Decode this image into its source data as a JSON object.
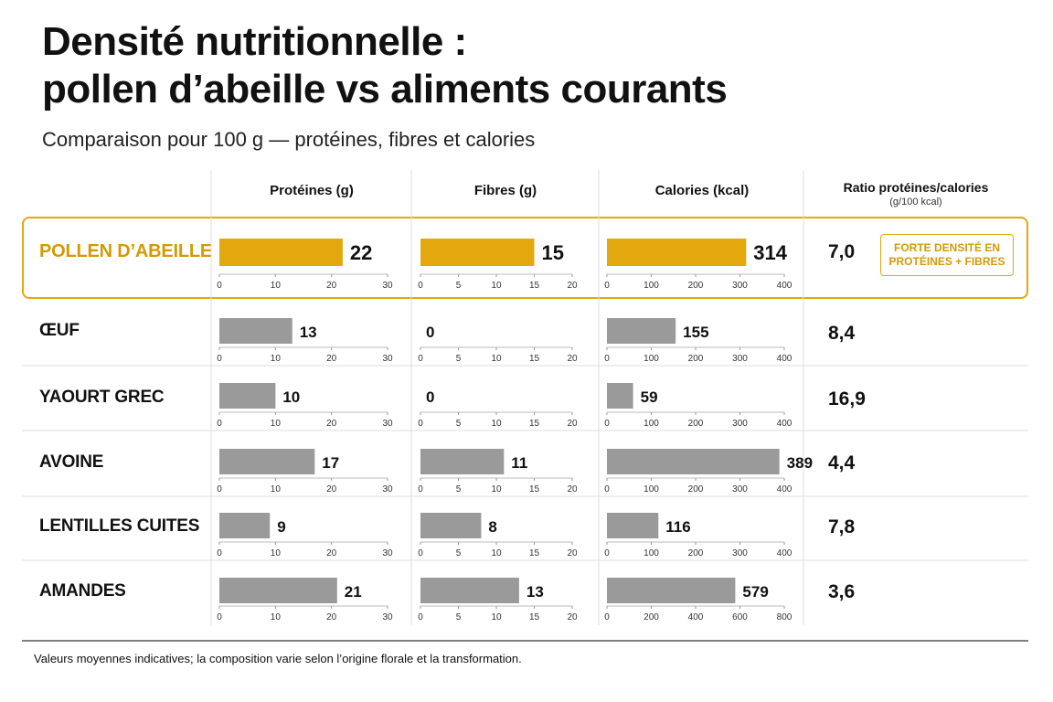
{
  "title_line1": "Densité nutritionnelle :",
  "title_line2": "pollen d’abeille vs aliments courants",
  "subtitle": "Comparaison pour 100 g — protéines, fibres et calories",
  "footnote": "Valeurs moyennes indicatives; la composition varie selon l’origine florale et la transformation.",
  "badge": {
    "line1": "FORTE DENSITÉ EN",
    "line2": "PROTÉINES + FIBRES"
  },
  "colors": {
    "highlight": "#e3a80e",
    "bar": "#9a9a9a",
    "highlight_label": "#d39a07"
  },
  "chart_data": {
    "type": "bar",
    "orientation": "horizontal",
    "layout": "small-multiples table",
    "columns": [
      {
        "key": "proteins",
        "label": "Protéines (g)"
      },
      {
        "key": "fibres",
        "label": "Fibres (g)"
      },
      {
        "key": "calories",
        "label": "Calories (kcal)"
      }
    ],
    "ratio_header": "Ratio protéines/calories",
    "ratio_subheader": "(g/100 kcal)",
    "rows": [
      {
        "label": "POLLEN D’ABEILLE",
        "highlight": true,
        "proteins": 22,
        "fibres": 15,
        "calories": 314,
        "ratio": "7,0"
      },
      {
        "label": "ŒUF",
        "proteins": 13,
        "fibres": 0,
        "calories": 155,
        "ratio": "8,4"
      },
      {
        "label": "YAOURT GREC",
        "proteins": 10,
        "fibres": 0,
        "calories": 59,
        "ratio": "16,9"
      },
      {
        "label": "AVOINE",
        "proteins": 17,
        "fibres": 11,
        "calories": 389,
        "ratio": "4,4"
      },
      {
        "label": "LENTILLES CUITES",
        "proteins": 9,
        "fibres": 8,
        "calories": 116,
        "ratio": "7,8"
      },
      {
        "label": "AMANDES",
        "proteins": 21,
        "fibres": 13,
        "calories": 579,
        "ratio": "3,6"
      }
    ],
    "axes": {
      "proteins": {
        "range": [
          0,
          30
        ],
        "ticks": [
          0,
          10,
          20,
          30
        ]
      },
      "fibres": {
        "range": [
          0,
          20
        ],
        "ticks": [
          0,
          5,
          10,
          15,
          20
        ]
      },
      "calories": {
        "range": [
          0,
          400
        ],
        "ticks": [
          0,
          100,
          200,
          300,
          400
        ]
      },
      "calories_last_row": {
        "range": [
          0,
          800
        ],
        "ticks": [
          0,
          200,
          400,
          600,
          800
        ]
      }
    }
  }
}
